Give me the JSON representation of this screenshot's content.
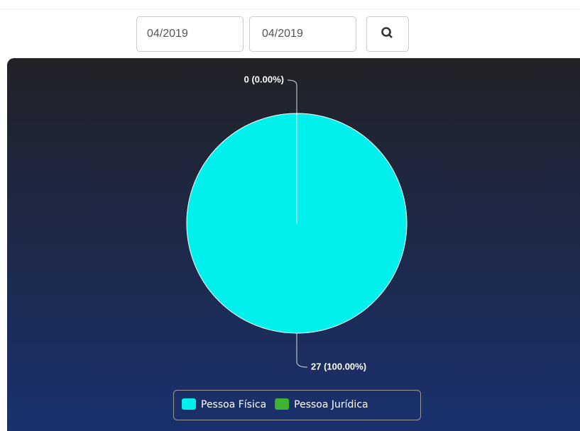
{
  "filters": {
    "start": "04/2019",
    "end": "04/2019"
  },
  "chart_data": {
    "type": "pie",
    "categories": [
      "Pessoa Física",
      "Pessoa Jurídica"
    ],
    "values": [
      27,
      0
    ],
    "value_labels": [
      "27 (100.00%)",
      "0 (0.00%)"
    ],
    "colors": [
      "#00f0ee",
      "#3cb431"
    ],
    "legend": "bottom"
  }
}
